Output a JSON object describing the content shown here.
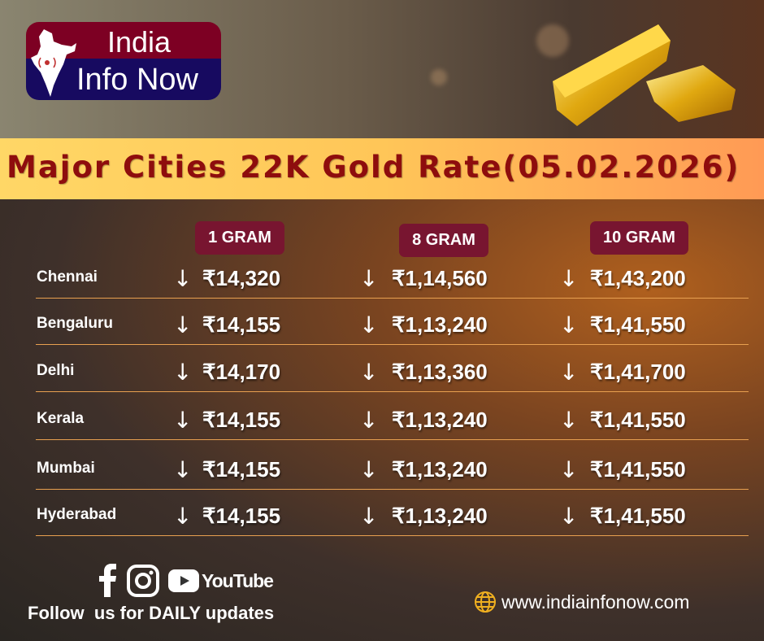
{
  "brand": {
    "line1": "India",
    "line2": "Info Now"
  },
  "title": "Major Cities 22K Gold Rate(05.02.2026)",
  "columns": [
    "1 GRAM",
    "8 GRAM",
    "10 GRAM"
  ],
  "trend_icon": "arrow-down",
  "rows": [
    {
      "city": "Chennai",
      "values": [
        "₹14,320",
        "₹1,14,560",
        "₹1,43,200"
      ]
    },
    {
      "city": "Bengaluru",
      "values": [
        "₹14,155",
        "₹1,13,240",
        "₹1,41,550"
      ]
    },
    {
      "city": "Delhi",
      "values": [
        "₹14,170",
        "₹1,13,360",
        "₹1,41,700"
      ]
    },
    {
      "city": "Kerala",
      "values": [
        "₹14,155",
        "₹1,13,240",
        "₹1,41,550"
      ]
    },
    {
      "city": "Mumbai",
      "values": [
        "₹14,155",
        "₹1,13,240",
        "₹1,41,550"
      ]
    },
    {
      "city": "Hyderabad",
      "values": [
        "₹14,155",
        "₹1,13,240",
        "₹1,41,550"
      ]
    }
  ],
  "footer": {
    "youtube": "YouTube",
    "follow": "Follow  us for DAILY updates",
    "website": "www.indiainfonow.com"
  },
  "colors": {
    "title": "#8e0d0d",
    "pill": "#781530",
    "logo_top": "#7d0023",
    "logo_bottom": "#170a60"
  }
}
